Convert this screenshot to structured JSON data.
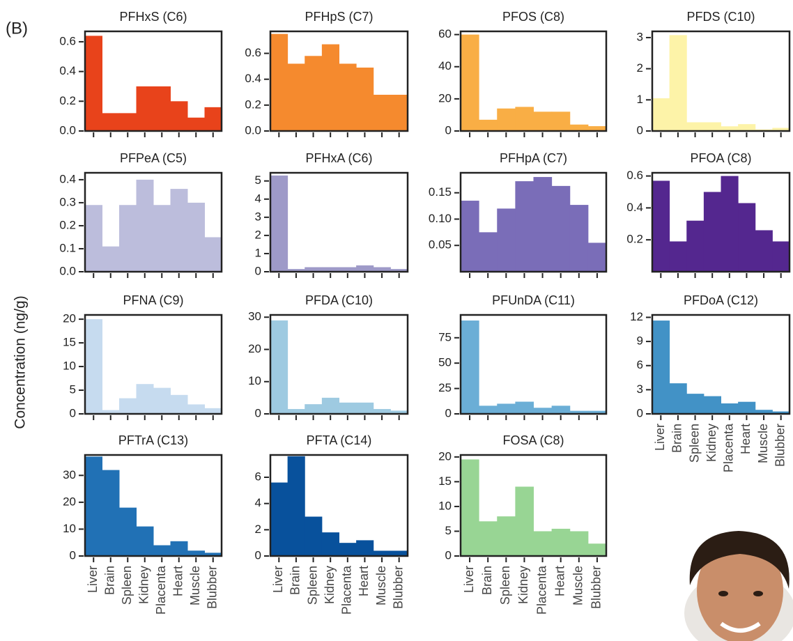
{
  "panel_label": "(B)",
  "ylabel": "Concentration (ng/g)",
  "chart_data": [
    {
      "type": "bar",
      "title": "PFHxS (C6)",
      "color": "#e8431b",
      "values": [
        0.64,
        0.12,
        0.12,
        0.3,
        0.3,
        0.2,
        0.09,
        0.16
      ],
      "ylim": [
        0,
        0.67
      ],
      "yticks": [
        {
          "value": 0,
          "label": "0.0"
        },
        0.2,
        0.4,
        0.6
      ]
    },
    {
      "type": "bar",
      "title": "PFHpS (C7)",
      "color": "#f58a2e",
      "values": [
        0.75,
        0.52,
        0.58,
        0.67,
        0.52,
        0.49,
        0.28,
        0.28
      ],
      "ylim": [
        0,
        0.77
      ],
      "yticks": [
        {
          "value": 0,
          "label": "0.0"
        },
        0.2,
        0.4,
        0.6
      ]
    },
    {
      "type": "bar",
      "title": "PFOS (C8)",
      "color": "#f9ae45",
      "values": [
        60,
        7,
        14,
        15,
        12,
        12,
        4,
        3
      ],
      "ylim": [
        0,
        62
      ],
      "yticks": [
        0,
        20,
        40,
        60
      ]
    },
    {
      "type": "bar",
      "title": "PFDS (C10)",
      "color": "#fdf3a8",
      "values": [
        1.05,
        3.08,
        0.28,
        0.28,
        0.15,
        0.22,
        0.05,
        0.1
      ],
      "ylim": [
        0,
        3.2
      ],
      "yticks": [
        0,
        1,
        2,
        3
      ]
    },
    {
      "type": "bar",
      "title": "PFPeA (C5)",
      "color": "#bcbddc",
      "values": [
        0.29,
        0.11,
        0.29,
        0.4,
        0.29,
        0.36,
        0.3,
        0.15
      ],
      "ylim": [
        0,
        0.43
      ],
      "yticks": [
        {
          "value": 0,
          "label": "0.0"
        },
        0.1,
        0.2,
        0.3,
        0.4
      ]
    },
    {
      "type": "bar",
      "title": "PFHxA (C6)",
      "color": "#9e9ac8",
      "values": [
        5.3,
        0.15,
        0.25,
        0.25,
        0.25,
        0.35,
        0.25,
        0.15
      ],
      "ylim": [
        0,
        5.45
      ],
      "yticks": [
        0,
        1,
        2,
        3,
        4,
        5
      ]
    },
    {
      "type": "bar",
      "title": "PFHpA (C7)",
      "color": "#7a6db8",
      "values": [
        0.135,
        0.075,
        0.12,
        0.172,
        0.18,
        0.163,
        0.127,
        0.055
      ],
      "ylim": [
        0,
        0.188
      ],
      "yticks": [
        0.05,
        {
          "value": 0.1,
          "label": "0.10"
        },
        0.15
      ]
    },
    {
      "type": "bar",
      "title": "PFOA (C8)",
      "color": "#54278f",
      "values": [
        0.57,
        0.19,
        0.32,
        0.5,
        0.6,
        0.43,
        0.26,
        0.19
      ],
      "ylim": [
        0,
        0.62
      ],
      "yticks": [
        0.2,
        0.4,
        0.6
      ]
    },
    {
      "type": "bar",
      "title": "PFNA (C9)",
      "color": "#c6dbef",
      "values": [
        20,
        0.8,
        3.3,
        6.3,
        5.5,
        4,
        2,
        1.2
      ],
      "ylim": [
        0,
        20.9
      ],
      "yticks": [
        0,
        5,
        10,
        15,
        20
      ]
    },
    {
      "type": "bar",
      "title": "PFDA (C10)",
      "color": "#9ecae1",
      "values": [
        29,
        1.5,
        3,
        5,
        3.5,
        3.5,
        1.5,
        1
      ],
      "ylim": [
        0,
        30.7
      ],
      "yticks": [
        0,
        10,
        20,
        30
      ]
    },
    {
      "type": "bar",
      "title": "PFUnDA (C11)",
      "color": "#6baed6",
      "values": [
        92,
        8,
        10,
        12,
        6,
        8,
        3,
        3
      ],
      "ylim": [
        0,
        97.5
      ],
      "yticks": [
        0,
        25,
        50,
        75
      ]
    },
    {
      "type": "bar",
      "title": "PFDoA (C12)",
      "color": "#4292c6",
      "values": [
        11.6,
        3.8,
        2.5,
        2.2,
        1.3,
        1.5,
        0.5,
        0.3
      ],
      "ylim": [
        0,
        12.3
      ],
      "yticks": [
        0,
        3,
        6,
        9,
        12
      ],
      "categories": [
        "Liver",
        "Brain",
        "Spleen",
        "Kidney",
        "Placenta",
        "Heart",
        "Muscle",
        "Blubber"
      ]
    },
    {
      "type": "bar",
      "title": "PFTrA (C13)",
      "color": "#2171b5",
      "values": [
        37,
        32,
        18,
        11,
        4,
        5.5,
        2,
        1.2
      ],
      "ylim": [
        0,
        37.6
      ],
      "yticks": [
        0,
        10,
        20,
        30
      ],
      "categories": [
        "Liver",
        "Brain",
        "Spleen",
        "Kidney",
        "Placenta",
        "Heart",
        "Muscle",
        "Blubber"
      ]
    },
    {
      "type": "bar",
      "title": "PFTA (C14)",
      "color": "#08519c",
      "values": [
        5.6,
        7.6,
        3,
        1.8,
        1,
        1.2,
        0.4,
        0.4
      ],
      "ylim": [
        0,
        7.7
      ],
      "yticks": [
        0,
        2,
        4,
        6
      ],
      "categories": [
        "Liver",
        "Brain",
        "Spleen",
        "Kidney",
        "Placenta",
        "Heart",
        "Muscle",
        "Blubber"
      ]
    },
    {
      "type": "bar",
      "title": "FOSA (C8)",
      "color": "#98d594",
      "values": [
        19.5,
        7,
        8,
        14,
        5,
        5.5,
        5,
        2.5
      ],
      "ylim": [
        0,
        20.4
      ],
      "yticks": [
        0,
        5,
        10,
        15,
        20
      ],
      "categories": [
        "Liver",
        "Brain",
        "Spleen",
        "Kidney",
        "Placenta",
        "Heart",
        "Muscle",
        "Blubber"
      ]
    }
  ]
}
